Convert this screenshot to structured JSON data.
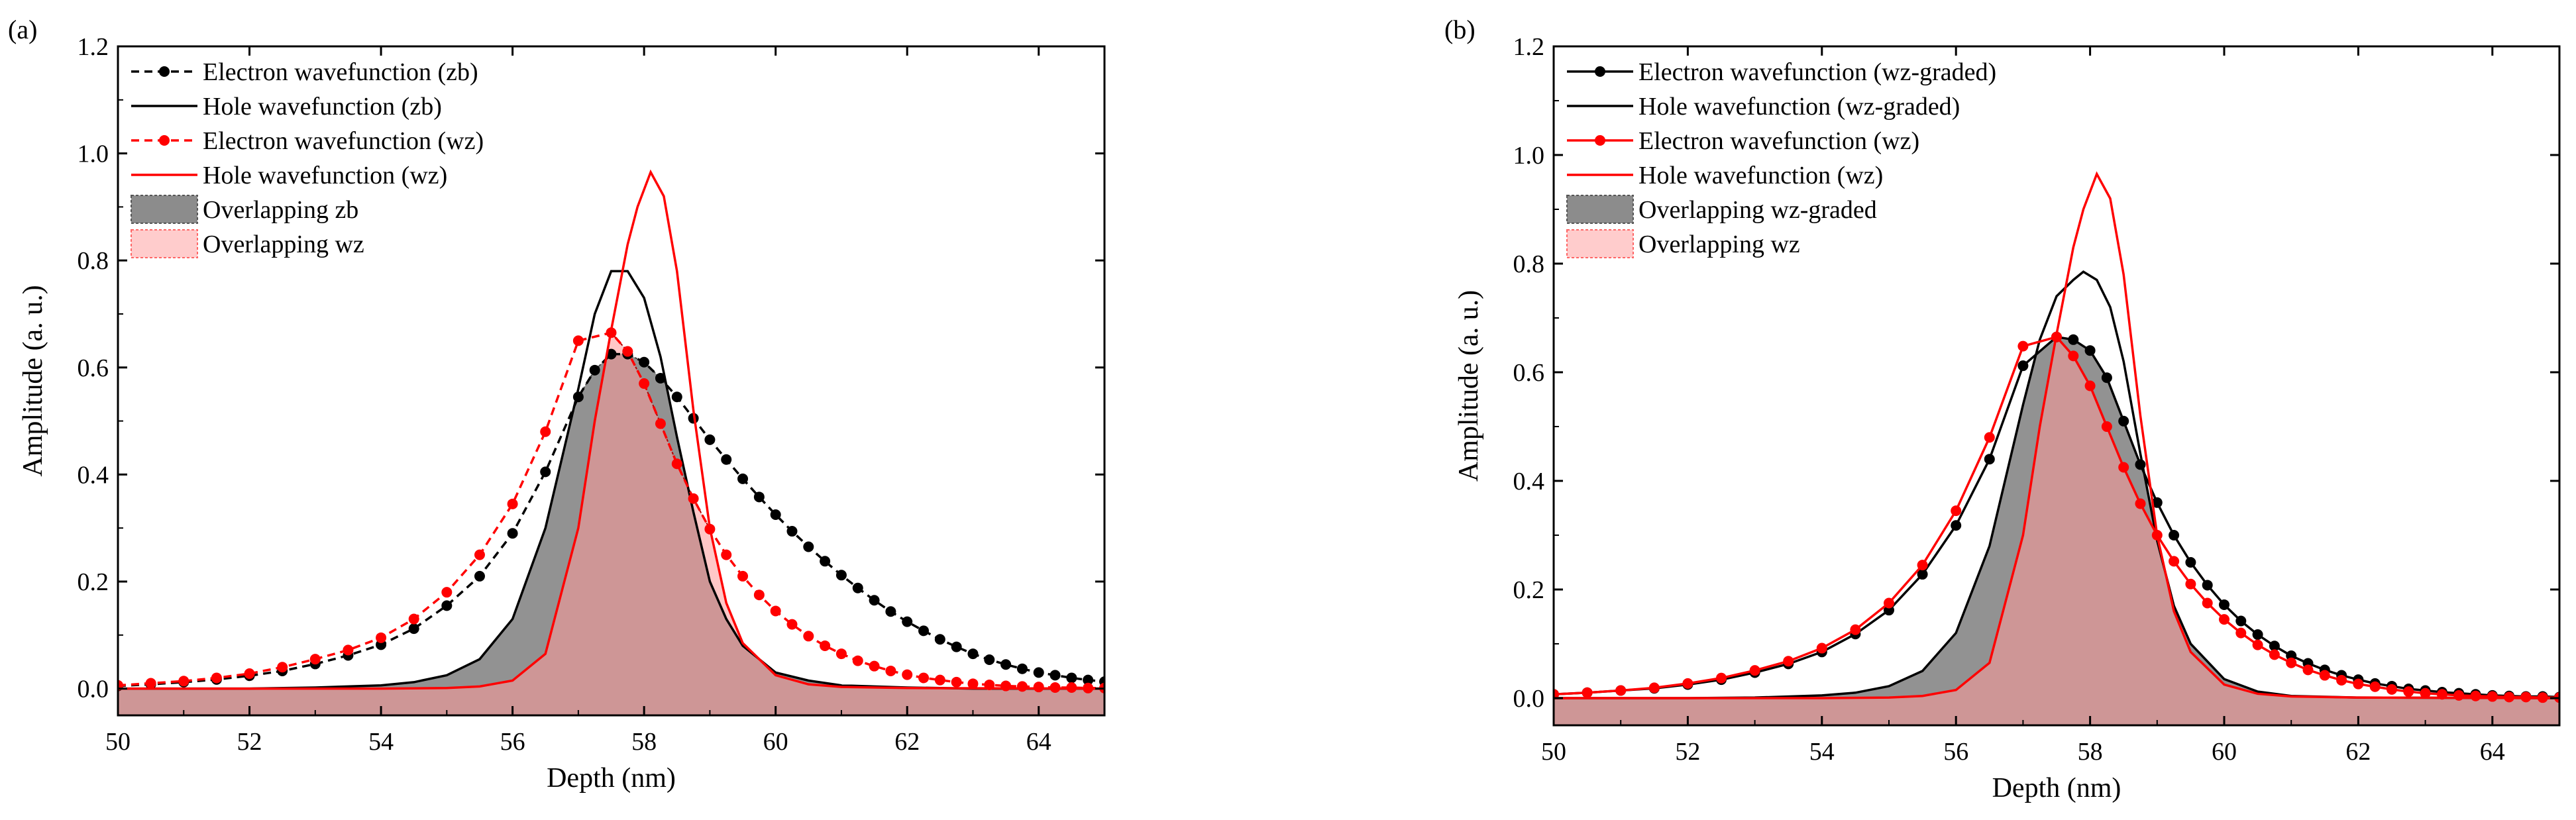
{
  "chart_data": [
    {
      "type": "line",
      "panel_label": "(a)",
      "xlabel": "Depth (nm)",
      "ylabel": "Amplitude (a. u.)",
      "xlim": [
        50,
        65
      ],
      "ylim": [
        -0.05,
        1.2
      ],
      "xticks": [
        50,
        52,
        54,
        56,
        58,
        60,
        62,
        64
      ],
      "yticks": [
        0.0,
        0.2,
        0.4,
        0.6,
        0.8,
        1.0,
        1.2
      ],
      "legend_position": "top-left",
      "series": [
        {
          "name": "Electron wavefunction (zb)",
          "color": "#000000",
          "style": "dashed-markers",
          "x": [
            50,
            50.5,
            51,
            51.5,
            52,
            52.5,
            53,
            53.5,
            54,
            54.5,
            55,
            55.5,
            56,
            56.5,
            57,
            57.25,
            57.5,
            57.75,
            58,
            58.25,
            58.5,
            58.75,
            59,
            59.25,
            59.5,
            59.75,
            60,
            60.25,
            60.5,
            60.75,
            61,
            61.25,
            61.5,
            61.75,
            62,
            62.25,
            62.5,
            62.75,
            63,
            63.25,
            63.5,
            63.75,
            64,
            64.25,
            64.5,
            64.75,
            65
          ],
          "values": [
            0.005,
            0.008,
            0.012,
            0.017,
            0.024,
            0.033,
            0.046,
            0.062,
            0.082,
            0.112,
            0.155,
            0.21,
            0.29,
            0.405,
            0.545,
            0.595,
            0.625,
            0.625,
            0.61,
            0.58,
            0.545,
            0.505,
            0.465,
            0.428,
            0.392,
            0.358,
            0.325,
            0.294,
            0.265,
            0.238,
            0.212,
            0.188,
            0.165,
            0.144,
            0.125,
            0.108,
            0.092,
            0.078,
            0.065,
            0.054,
            0.045,
            0.037,
            0.03,
            0.025,
            0.02,
            0.016,
            0.013
          ]
        },
        {
          "name": "Hole wavefunction (zb)",
          "color": "#000000",
          "style": "solid",
          "x": [
            50,
            51,
            52,
            53,
            54,
            54.5,
            55,
            55.5,
            56,
            56.5,
            57,
            57.25,
            57.5,
            57.75,
            58,
            58.25,
            58.5,
            58.75,
            59,
            59.25,
            59.5,
            60,
            60.5,
            61,
            62,
            63,
            65
          ],
          "values": [
            0.0,
            0.0,
            0.0,
            0.002,
            0.006,
            0.012,
            0.025,
            0.055,
            0.13,
            0.3,
            0.56,
            0.7,
            0.78,
            0.78,
            0.73,
            0.62,
            0.47,
            0.33,
            0.2,
            0.13,
            0.08,
            0.03,
            0.015,
            0.006,
            0.002,
            0.0,
            0.0
          ]
        },
        {
          "name": "Electron wavefunction (wz)",
          "color": "#ff0000",
          "style": "dashed-markers",
          "x": [
            50,
            50.5,
            51,
            51.5,
            52,
            52.5,
            53,
            53.5,
            54,
            54.5,
            55,
            55.5,
            56,
            56.5,
            57,
            57.5,
            57.75,
            58,
            58.25,
            58.5,
            58.75,
            59,
            59.25,
            59.5,
            59.75,
            60,
            60.25,
            60.5,
            60.75,
            61,
            61.25,
            61.5,
            61.75,
            62,
            62.25,
            62.5,
            62.75,
            63,
            63.25,
            63.5,
            63.75,
            64,
            64.25,
            64.5,
            64.75,
            65
          ],
          "values": [
            0.006,
            0.01,
            0.014,
            0.02,
            0.028,
            0.04,
            0.055,
            0.072,
            0.095,
            0.13,
            0.18,
            0.25,
            0.345,
            0.48,
            0.65,
            0.665,
            0.63,
            0.57,
            0.495,
            0.42,
            0.355,
            0.298,
            0.25,
            0.21,
            0.175,
            0.145,
            0.12,
            0.098,
            0.08,
            0.065,
            0.052,
            0.042,
            0.033,
            0.026,
            0.02,
            0.016,
            0.012,
            0.009,
            0.007,
            0.005,
            0.004,
            0.003,
            0.002,
            0.002,
            0.001,
            0.001
          ]
        },
        {
          "name": "Hole wavefunction (wz)",
          "color": "#ff0000",
          "style": "solid",
          "x": [
            50,
            52,
            54,
            55,
            55.5,
            56,
            56.5,
            57,
            57.25,
            57.5,
            57.75,
            57.9,
            58.1,
            58.3,
            58.5,
            58.75,
            59,
            59.25,
            59.5,
            60,
            60.5,
            61,
            62,
            65
          ],
          "values": [
            0.0,
            0.0,
            0.0,
            0.001,
            0.004,
            0.015,
            0.065,
            0.3,
            0.5,
            0.67,
            0.83,
            0.9,
            0.965,
            0.92,
            0.78,
            0.52,
            0.3,
            0.16,
            0.085,
            0.025,
            0.008,
            0.003,
            0.001,
            0.0
          ]
        },
        {
          "name": "Overlapping zb",
          "color": "#8c8c8c",
          "style": "fill"
        },
        {
          "name": "Overlapping wz",
          "color": "#ff9999",
          "style": "fill"
        }
      ]
    },
    {
      "type": "line",
      "panel_label": "(b)",
      "xlabel": "Depth (nm)",
      "ylabel": "Amplitude (a. u.)",
      "xlim": [
        50,
        65
      ],
      "ylim": [
        -0.05,
        1.2
      ],
      "xticks": [
        50,
        52,
        54,
        56,
        58,
        60,
        62,
        64
      ],
      "yticks": [
        0.0,
        0.2,
        0.4,
        0.6,
        0.8,
        1.0,
        1.2
      ],
      "legend_position": "top-left",
      "series": [
        {
          "name": "Electron wavefunction (wz-graded)",
          "color": "#000000",
          "style": "solid-markers",
          "x": [
            50,
            50.5,
            51,
            51.5,
            52,
            52.5,
            53,
            53.5,
            54,
            54.5,
            55,
            55.5,
            56,
            56.5,
            57,
            57.5,
            57.75,
            58,
            58.25,
            58.5,
            58.75,
            59,
            59.25,
            59.5,
            59.75,
            60,
            60.25,
            60.5,
            60.75,
            61,
            61.25,
            61.5,
            61.75,
            62,
            62.25,
            62.5,
            62.75,
            63,
            63.25,
            63.5,
            63.75,
            64,
            64.25,
            64.5,
            64.75,
            65
          ],
          "values": [
            0.007,
            0.01,
            0.014,
            0.018,
            0.025,
            0.034,
            0.047,
            0.063,
            0.085,
            0.118,
            0.162,
            0.228,
            0.318,
            0.44,
            0.612,
            0.665,
            0.66,
            0.64,
            0.59,
            0.51,
            0.43,
            0.36,
            0.3,
            0.25,
            0.208,
            0.172,
            0.142,
            0.117,
            0.096,
            0.078,
            0.064,
            0.052,
            0.042,
            0.034,
            0.027,
            0.022,
            0.017,
            0.014,
            0.011,
            0.009,
            0.007,
            0.005,
            0.004,
            0.003,
            0.003,
            0.002
          ]
        },
        {
          "name": "Hole wavefunction (wz-graded)",
          "color": "#000000",
          "style": "solid",
          "x": [
            50,
            51,
            52,
            53,
            54,
            54.5,
            55,
            55.5,
            56,
            56.5,
            57,
            57.25,
            57.5,
            57.75,
            57.9,
            58.1,
            58.3,
            58.5,
            58.75,
            59,
            59.25,
            59.5,
            60,
            60.5,
            61,
            62,
            65
          ],
          "values": [
            0.0,
            0.0,
            0.0,
            0.001,
            0.005,
            0.01,
            0.022,
            0.05,
            0.12,
            0.28,
            0.54,
            0.66,
            0.74,
            0.77,
            0.785,
            0.77,
            0.72,
            0.62,
            0.45,
            0.29,
            0.17,
            0.1,
            0.035,
            0.012,
            0.004,
            0.001,
            0.0
          ]
        },
        {
          "name": "Electron wavefunction (wz)",
          "color": "#ff0000",
          "style": "solid-markers",
          "x": [
            50,
            50.5,
            51,
            51.5,
            52,
            52.5,
            53,
            53.5,
            54,
            54.5,
            55,
            55.5,
            56,
            56.5,
            57,
            57.5,
            57.75,
            58,
            58.25,
            58.5,
            58.75,
            59,
            59.25,
            59.5,
            59.75,
            60,
            60.25,
            60.5,
            60.75,
            61,
            61.25,
            61.5,
            61.75,
            62,
            62.25,
            62.5,
            62.75,
            63,
            63.25,
            63.5,
            63.75,
            64,
            64.25,
            64.5,
            64.75,
            65
          ],
          "values": [
            0.007,
            0.01,
            0.014,
            0.019,
            0.027,
            0.037,
            0.051,
            0.068,
            0.092,
            0.126,
            0.175,
            0.245,
            0.345,
            0.48,
            0.648,
            0.665,
            0.63,
            0.575,
            0.5,
            0.425,
            0.358,
            0.3,
            0.252,
            0.21,
            0.175,
            0.145,
            0.12,
            0.098,
            0.08,
            0.065,
            0.052,
            0.042,
            0.033,
            0.026,
            0.021,
            0.016,
            0.012,
            0.009,
            0.007,
            0.005,
            0.004,
            0.003,
            0.002,
            0.002,
            0.001,
            0.001
          ]
        },
        {
          "name": "Hole wavefunction (wz)",
          "color": "#ff0000",
          "style": "solid",
          "x": [
            50,
            52,
            54,
            55,
            55.5,
            56,
            56.5,
            57,
            57.25,
            57.5,
            57.75,
            57.9,
            58.1,
            58.3,
            58.5,
            58.75,
            59,
            59.25,
            59.5,
            60,
            60.5,
            61,
            62,
            65
          ],
          "values": [
            0.0,
            0.0,
            0.0,
            0.001,
            0.004,
            0.015,
            0.065,
            0.3,
            0.5,
            0.67,
            0.83,
            0.9,
            0.965,
            0.92,
            0.78,
            0.52,
            0.3,
            0.16,
            0.085,
            0.025,
            0.008,
            0.003,
            0.001,
            0.0
          ]
        },
        {
          "name": "Overlapping wz-graded",
          "color": "#8c8c8c",
          "style": "fill"
        },
        {
          "name": "Overlapping wz",
          "color": "#ff9999",
          "style": "fill"
        }
      ]
    }
  ]
}
